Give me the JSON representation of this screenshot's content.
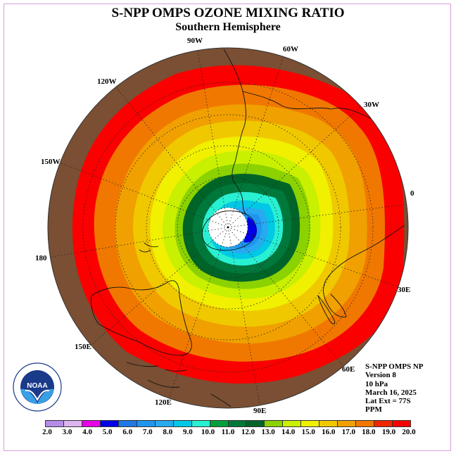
{
  "header": {
    "title": "S-NPP OMPS OZONE MIXING RATIO",
    "subtitle": "Southern Hemisphere"
  },
  "map": {
    "projection": "polar-stereographic-south",
    "longitude_labels": [
      "90W",
      "60W",
      "30W",
      "0",
      "30E",
      "60E",
      "90E",
      "120E",
      "150E",
      "180",
      "150W",
      "120W"
    ],
    "land_color": "#7a4f33",
    "pole_mask_color": "#ffffff",
    "grid_style": "dotted",
    "contour_levels_ppm": [
      2.0,
      3.0,
      4.0,
      5.0,
      6.0,
      7.0,
      8.0,
      9.0,
      10.0,
      11.0,
      12.0,
      13.0,
      14.0,
      15.0,
      16.0,
      17.0,
      18.0,
      19.0,
      20.0
    ]
  },
  "info": {
    "product": "S-NPP OMPS NP",
    "version": "Version 8",
    "level": "10 hPa",
    "date": "March 16, 2025",
    "lat_ext": "Lat Ext = 77S",
    "units": "PPM"
  },
  "colorbar": {
    "labels": [
      "2.0",
      "3.0",
      "4.0",
      "5.0",
      "6.0",
      "7.0",
      "8.0",
      "9.0",
      "10.0",
      "11.0",
      "12.0",
      "13.0",
      "14.0",
      "15.0",
      "16.0",
      "17.0",
      "18.0",
      "19.0",
      "20.0"
    ],
    "colors": [
      "#b48ce6",
      "#dcb4f0",
      "#e600e6",
      "#0000e6",
      "#1e78e6",
      "#1e96f0",
      "#28aaf0",
      "#00c8e6",
      "#28f0d2",
      "#00a03c",
      "#00783c",
      "#006428",
      "#8cd200",
      "#c8f000",
      "#f0f000",
      "#f0c800",
      "#f0a000",
      "#f07800",
      "#f02800",
      "#fa0000",
      "#7a4f33"
    ]
  },
  "logo": {
    "text": "NOAA",
    "ring_text": "NATIONAL OCEANIC AND ATMOSPHERIC ADMINISTRATION · U.S. DEPARTMENT OF COMMERCE"
  }
}
